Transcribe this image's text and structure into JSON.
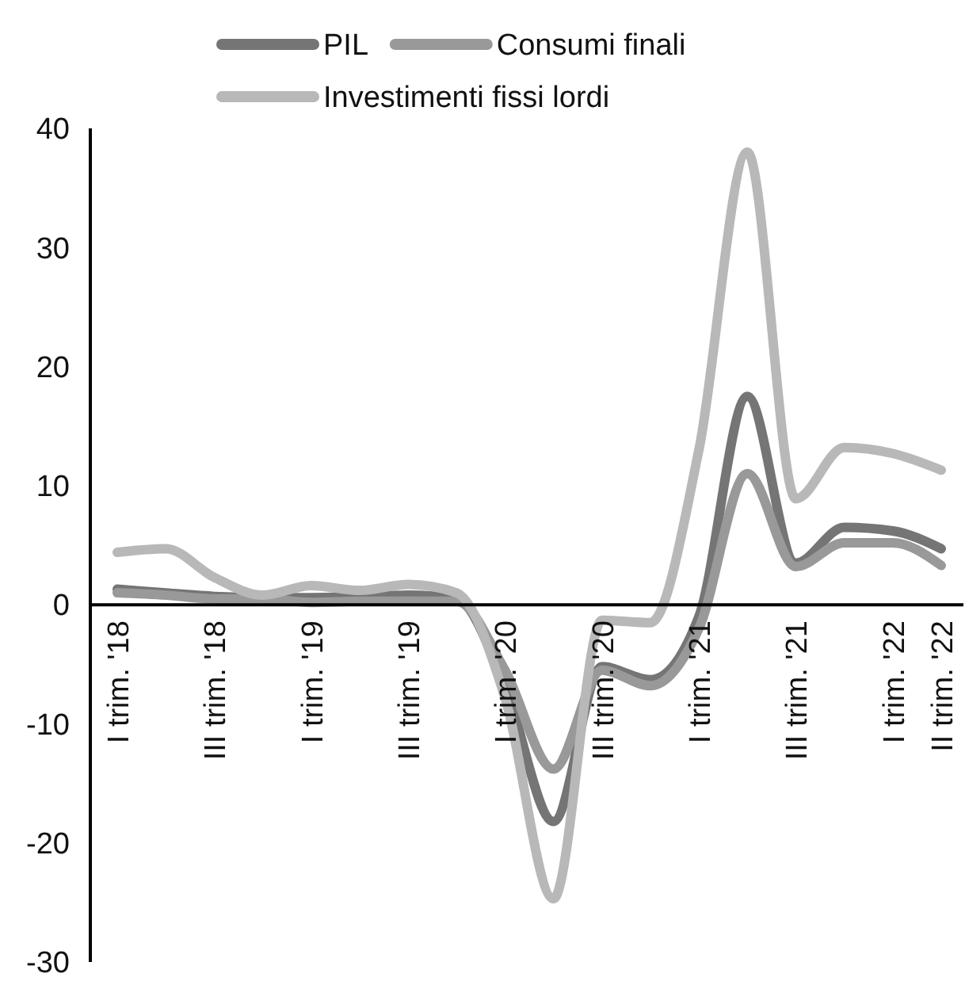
{
  "chart_data": {
    "type": "line",
    "categories": [
      "I trim. '18",
      null,
      "III trim. '18",
      null,
      "I trim. '19",
      null,
      "III trim. '19",
      null,
      "I trim. '20",
      null,
      "III trim. '20",
      null,
      "I trim. '21",
      null,
      "III trim. '21",
      null,
      "I trim. '22",
      "II trim. '22"
    ],
    "series": [
      {
        "name": "PIL",
        "color": "#757575",
        "values": [
          1.3,
          1.0,
          0.7,
          0.6,
          0.6,
          0.7,
          0.8,
          0.5,
          -6.8,
          -18.2,
          -5.2,
          -6.3,
          -1,
          17.5,
          3.5,
          6.5,
          6.2,
          4.7
        ]
      },
      {
        "name": "Consumi finali",
        "color": "#999999",
        "values": [
          1.0,
          0.8,
          0.5,
          0.5,
          0.2,
          0.3,
          0.3,
          0.3,
          -5.5,
          -13.8,
          -5.5,
          -6.8,
          -2,
          11,
          3.2,
          5.2,
          5.2,
          3.3
        ]
      },
      {
        "name": "Investimenti fissi lordi",
        "color": "#b8b8b8",
        "values": [
          4.4,
          4.7,
          2.3,
          0.8,
          1.6,
          1.2,
          1.7,
          1.0,
          -7.8,
          -24.7,
          -1.3,
          -1.5,
          13,
          38,
          8.9,
          13.2,
          12.7,
          11.3
        ]
      }
    ],
    "ylim": [
      -30,
      40
    ],
    "yticks": [
      -30,
      -20,
      -10,
      0,
      10,
      20,
      30,
      40
    ],
    "grid": false,
    "legend": "top",
    "marker": "none",
    "line_style": "solid"
  }
}
